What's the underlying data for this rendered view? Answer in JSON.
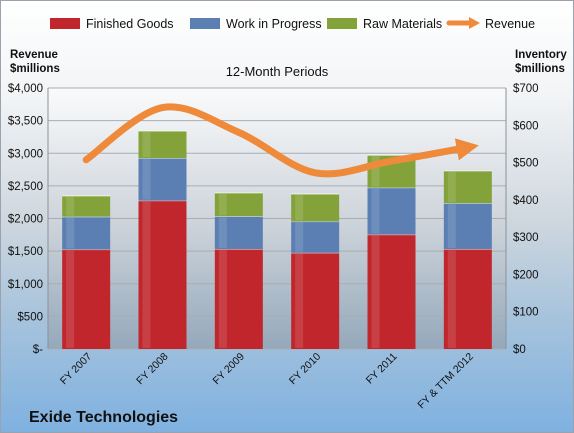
{
  "chart_data": {
    "type": "bar",
    "stacked": true,
    "title": "12-Month Periods",
    "company": "Exide Technologies",
    "categories": [
      "FY 2007",
      "FY 2008",
      "FY 2009",
      "FY 2010",
      "FY 2011",
      "FY & TTM 2012"
    ],
    "series": [
      {
        "name": "Finished Goods",
        "axis": "right",
        "color": "#c0262c",
        "values": [
          267,
          398,
          268,
          258,
          307,
          268
        ]
      },
      {
        "name": "Work in Progress",
        "axis": "right",
        "color": "#5b7fb3",
        "values": [
          88,
          114,
          88,
          84,
          126,
          123
        ]
      },
      {
        "name": "Raw Materials",
        "axis": "right",
        "color": "#83a33a",
        "values": [
          56,
          73,
          63,
          74,
          87,
          87
        ]
      },
      {
        "name": "Revenue",
        "axis": "left",
        "type": "line",
        "color": "#ee8a3a",
        "values": [
          2900,
          3700,
          3320,
          2700,
          2880,
          3090
        ]
      }
    ],
    "left_axis": {
      "label_line1": "Revenue",
      "label_line2": "$millions",
      "ylim": [
        0,
        4000
      ],
      "ticks": [
        "$-",
        "$500",
        "$1,000",
        "$1,500",
        "$2,000",
        "$2,500",
        "$3,000",
        "$3,500",
        "$4,000"
      ]
    },
    "right_axis": {
      "label_line1": "Inventory",
      "label_line2": "$millions",
      "ylim": [
        0,
        700
      ],
      "ticks": [
        "$0",
        "$100",
        "$200",
        "$300",
        "$400",
        "$500",
        "$600",
        "$700"
      ]
    },
    "legend_position": "top",
    "grid": true
  }
}
